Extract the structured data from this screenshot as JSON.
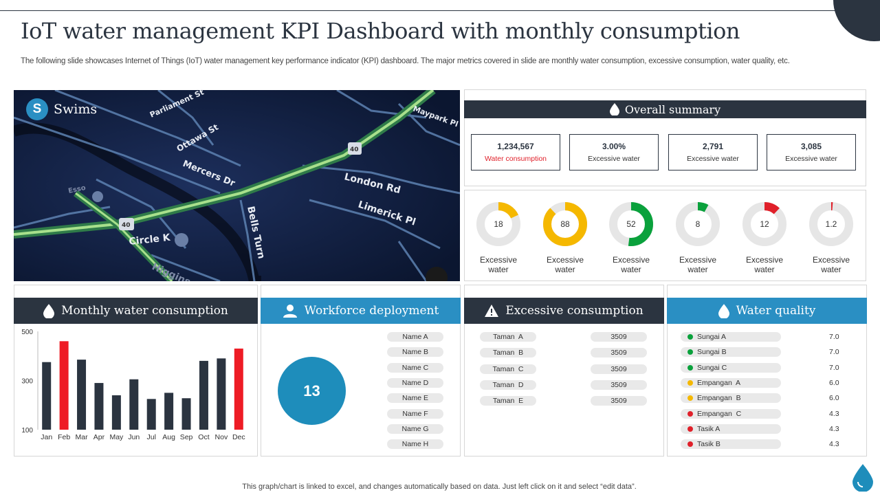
{
  "header": {
    "title": "IoT water management KPI Dashboard with monthly consumption",
    "subtitle": "The following slide showcases Internet of Things (IoT) water management key performance indicator (KPI) dashboard. The major metrics covered in slide are monthly water consumption, excessive consumption, water quality, etc."
  },
  "map": {
    "brand_letter": "S",
    "brand_name": "Swims",
    "labels": [
      "Parliament St",
      "Ottawa St",
      "Mercers Dr",
      "London Rd",
      "Limerick Pl",
      "Bells Turn",
      "Circle K",
      "Maypark Pl",
      "Higgins",
      "40",
      "40",
      "Esso"
    ]
  },
  "summary": {
    "title": "Overall summary",
    "kpis": [
      {
        "value": "1,234,567",
        "label": "Water consumption"
      },
      {
        "value": "3.00%",
        "label": "Excessive water"
      },
      {
        "value": "2,791",
        "label": "Excessive water"
      },
      {
        "value": "3,085",
        "label": "Excessive water"
      }
    ],
    "colors": {
      "accent_red": "#e0202a",
      "dark": "#2b3440",
      "blue": "#2a8fc3"
    }
  },
  "gauges": [
    {
      "value": "18",
      "pct": 18,
      "color": "#f5b800",
      "label_line1": "Excessive",
      "label_line2": "water"
    },
    {
      "value": "88",
      "pct": 88,
      "color": "#f5b800",
      "label_line1": "Excessive",
      "label_line2": "water"
    },
    {
      "value": "52",
      "pct": 52,
      "color": "#0aa13c",
      "label_line1": "Excessive",
      "label_line2": "water"
    },
    {
      "value": "8",
      "pct": 8,
      "color": "#0aa13c",
      "label_line1": "Excessive",
      "label_line2": "water"
    },
    {
      "value": "12",
      "pct": 12,
      "color": "#e0202a",
      "label_line1": "Excessive",
      "label_line2": "water"
    },
    {
      "value": "1.2",
      "pct": 1.2,
      "color": "#e0202a",
      "label_line1": "Excessive",
      "label_line2": "water"
    }
  ],
  "sections": {
    "monthly": {
      "title": "Monthly water consumption"
    },
    "workforce": {
      "title": "Workforce deployment",
      "count": "13",
      "names": [
        "Name A",
        "Name B",
        "Name C",
        "Name D",
        "Name E",
        "Name F",
        "Name G",
        "Name H"
      ]
    },
    "excessive": {
      "title": "Excessive consumption",
      "rows": [
        {
          "name": "Taman  A",
          "value": "3509"
        },
        {
          "name": "Taman  B",
          "value": "3509"
        },
        {
          "name": "Taman  C",
          "value": "3509"
        },
        {
          "name": "Taman  D",
          "value": "3509"
        },
        {
          "name": "Taman  E",
          "value": "3509"
        }
      ]
    },
    "quality": {
      "title": "Water quality",
      "rows": [
        {
          "name": "Sungai A",
          "value": "7.0",
          "color": "#0aa13c"
        },
        {
          "name": "Sungai B",
          "value": "7.0",
          "color": "#0aa13c"
        },
        {
          "name": "Sungai C",
          "value": "7.0",
          "color": "#0aa13c"
        },
        {
          "name": "Empangan  A",
          "value": "6.0",
          "color": "#f5b800"
        },
        {
          "name": "Empangan  B",
          "value": "6.0",
          "color": "#f5b800"
        },
        {
          "name": "Empangan  C",
          "value": "4.3",
          "color": "#e0202a"
        },
        {
          "name": "Tasik A",
          "value": "4.3",
          "color": "#e0202a"
        },
        {
          "name": "Tasik B",
          "value": "4.3",
          "color": "#e0202a"
        }
      ]
    }
  },
  "chart_data": {
    "type": "bar",
    "title": "Monthly water consumption",
    "categories": [
      "Jan",
      "Feb",
      "Mar",
      "Apr",
      "May",
      "Jun",
      "Jul",
      "Aug",
      "Sep",
      "Oct",
      "Nov",
      "Dec"
    ],
    "values": [
      375,
      460,
      385,
      290,
      240,
      305,
      225,
      250,
      228,
      380,
      390,
      430
    ],
    "highlight": [
      false,
      true,
      false,
      false,
      false,
      false,
      false,
      false,
      false,
      false,
      false,
      true
    ],
    "colors": {
      "normal": "#2b3440",
      "highlight": "#ee1c25"
    },
    "ylim": [
      100,
      500
    ],
    "yticks": [
      100,
      300,
      500
    ],
    "xlabel": "",
    "ylabel": "",
    "grid": false
  },
  "footer": {
    "note": "This graph/chart is linked to excel,  and changes automatically based on data. Just left click on it and select “edit data”."
  }
}
